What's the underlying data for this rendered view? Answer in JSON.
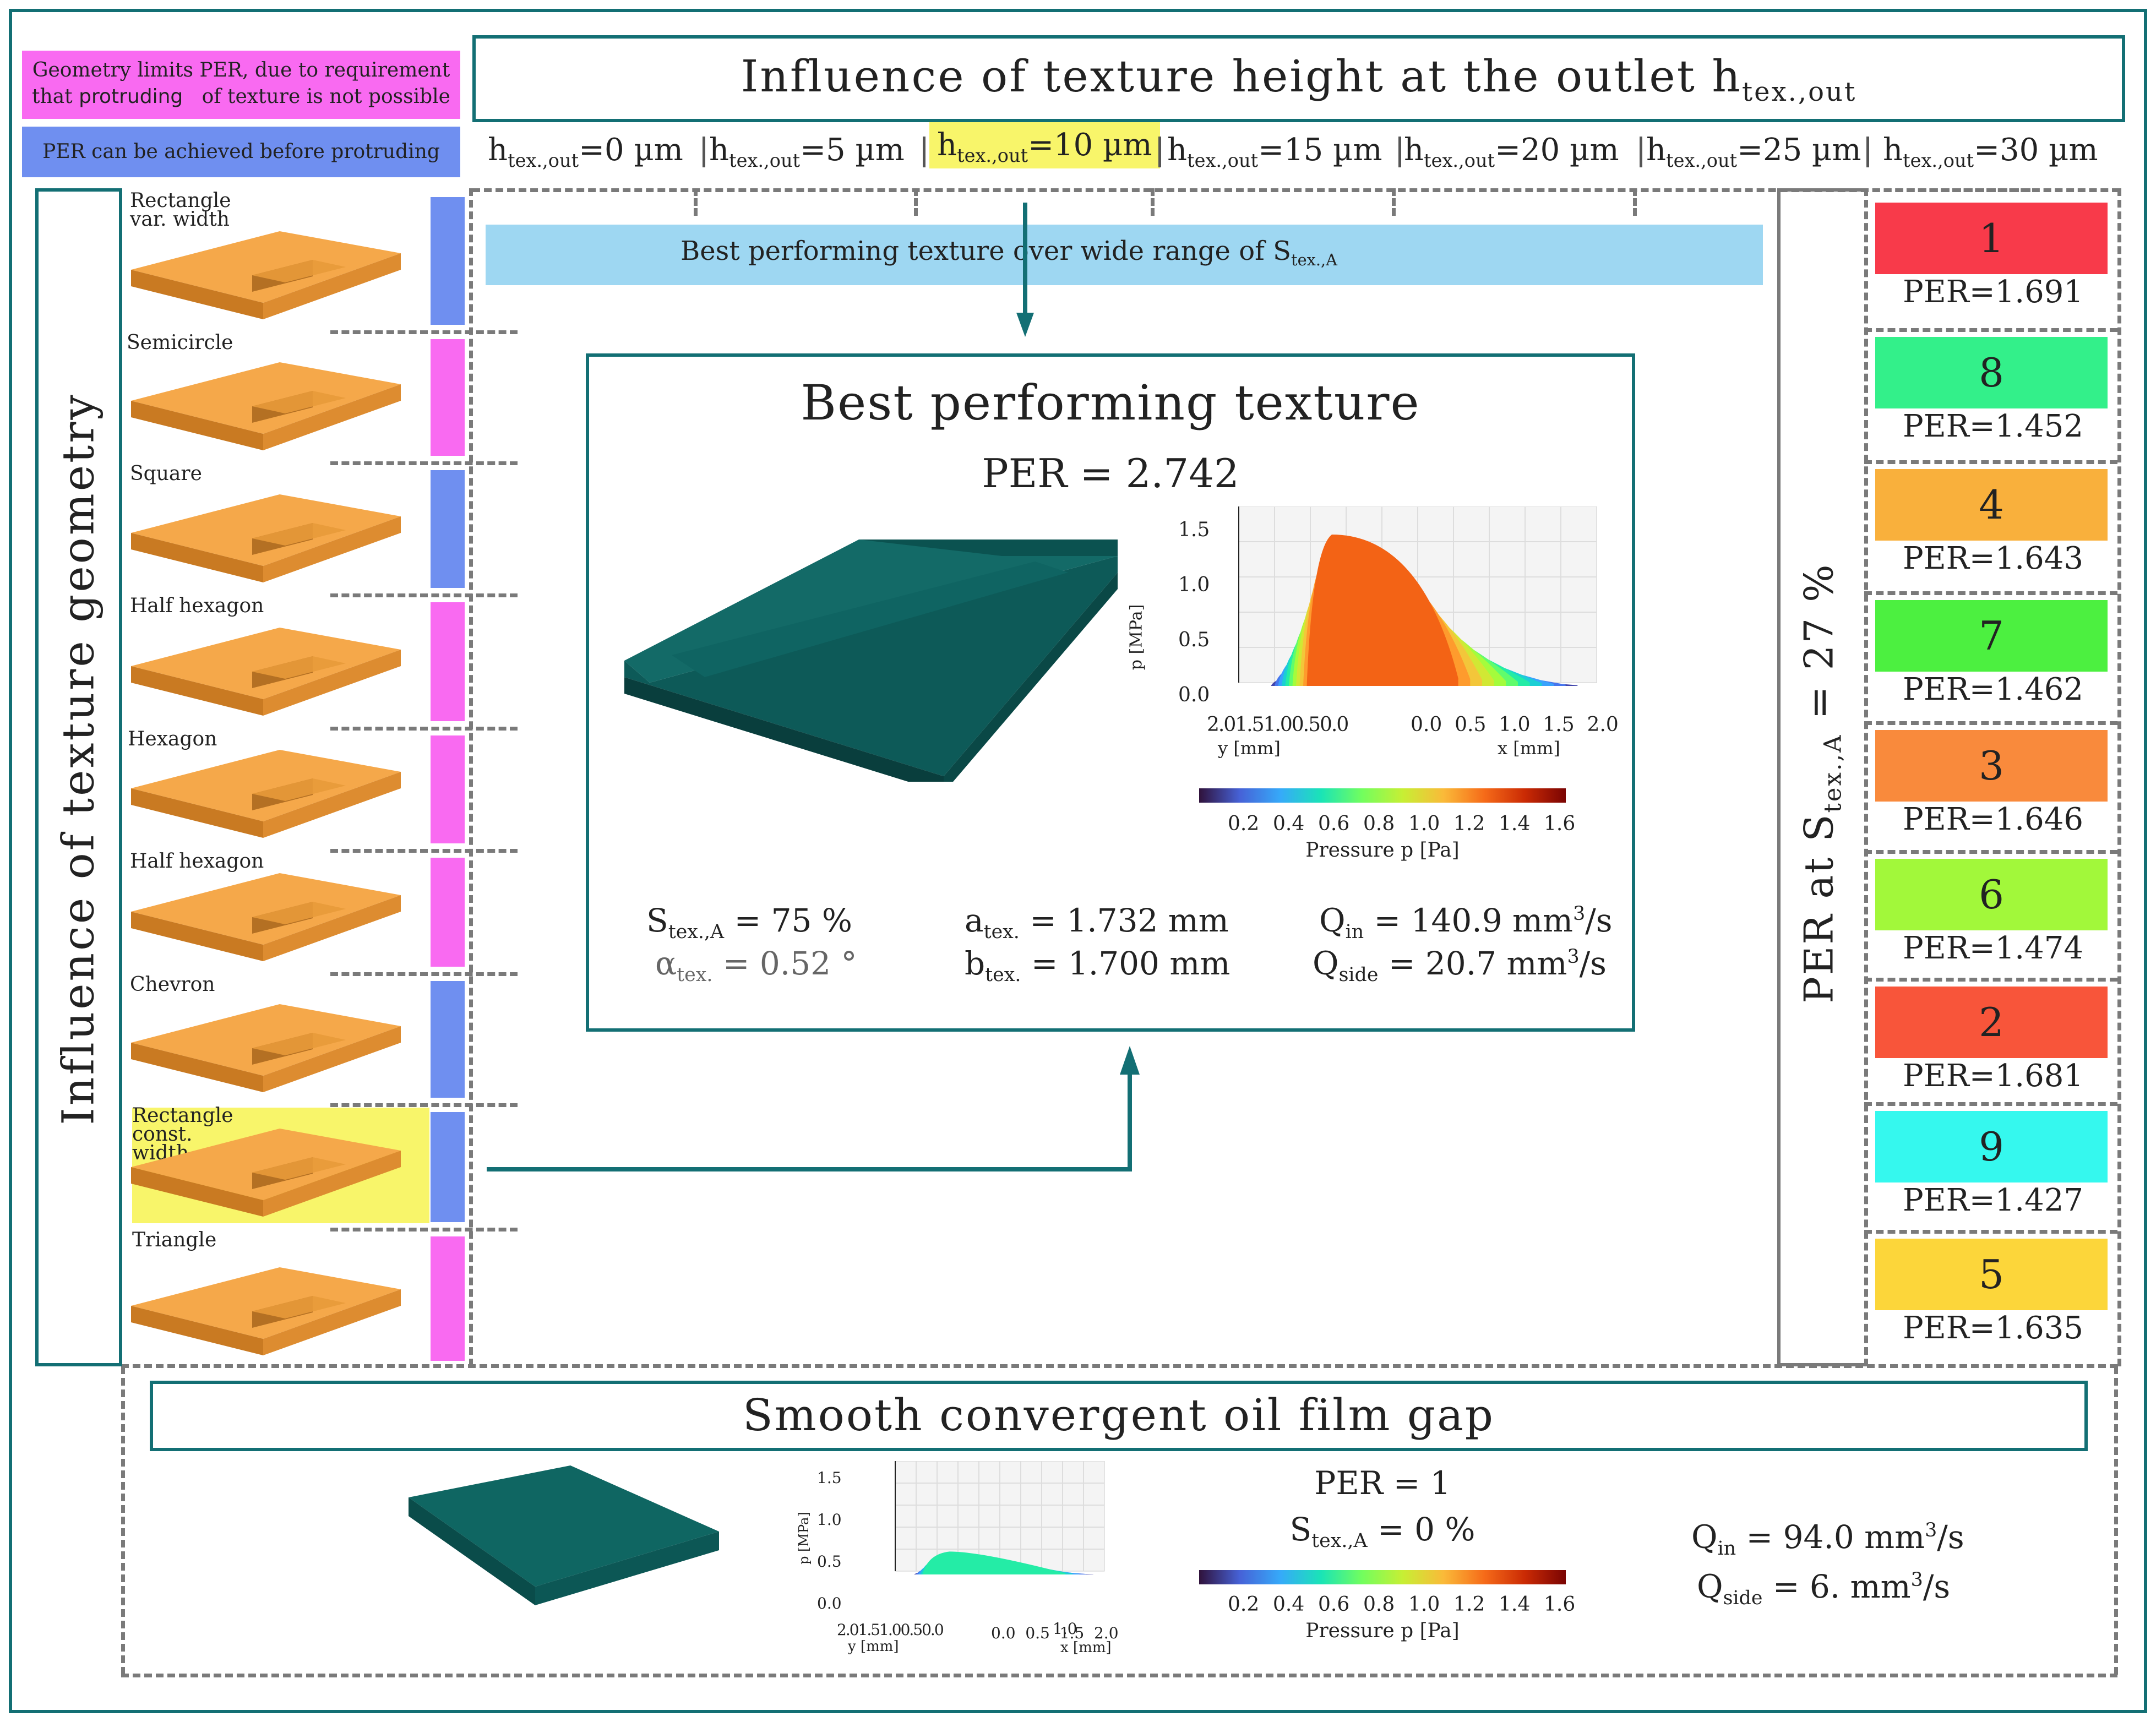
{
  "legend": {
    "pink_text_1": "Geometry limits PER, due to requirement",
    "pink_text_2a": "that",
    "pink_text_2b": "protruding",
    "pink_text_2c": "of texture is not possible",
    "blue_text": "PER can be achieved before protruding",
    "pink_color": "#f96af1",
    "blue_color": "#6f8ff0"
  },
  "header": {
    "title_main": "Influence of texture height at the outlet h",
    "title_sub": "tex.,out"
  },
  "heights": [
    {
      "sym": "h",
      "sub": "tex.,out",
      "val": "=0 µm"
    },
    {
      "sym": "h",
      "sub": "tex.,out",
      "val": "=5 µm"
    },
    {
      "sym": "h",
      "sub": "tex.,out",
      "val": "=10 µm"
    },
    {
      "sym": "h",
      "sub": "tex.,out",
      "val": "=15 µm"
    },
    {
      "sym": "h",
      "sub": "tex.,out",
      "val": "=20 µm"
    },
    {
      "sym": "h",
      "sub": "tex.,out",
      "val": "=25 µm"
    },
    {
      "sym": "h",
      "sub": "tex.,out",
      "val": "=30 µm"
    }
  ],
  "left_panel": {
    "title": "Influence of texture geometry"
  },
  "geometries": [
    {
      "label": "Rectangle\nvar. width",
      "status": "blue"
    },
    {
      "label": "Semicircle",
      "status": "pink"
    },
    {
      "label": "Square",
      "status": "blue"
    },
    {
      "label": "Half hexagon",
      "status": "pink"
    },
    {
      "label": "Hexagon",
      "status": "pink"
    },
    {
      "label": "Half hexagon",
      "status": "pink"
    },
    {
      "label": "Chevron",
      "status": "blue"
    },
    {
      "label": "Rectangle\nconst.\nwidth",
      "status": "blue"
    },
    {
      "label": "Triangle",
      "status": "pink"
    }
  ],
  "banner": {
    "text": "Best performing texture over wide range of S",
    "sub": "tex.,A"
  },
  "best": {
    "title": "Best performing texture",
    "per": "PER = 2.742",
    "s_tex_label": "S",
    "s_tex_sub": "tex.,A",
    "s_tex_val": " = 75 %",
    "alpha_label": "α",
    "alpha_sub": "tex.",
    "alpha_val": " = 0.52 °",
    "a_label": "a",
    "a_sub": "tex.",
    "a_val": " = 1.732 mm",
    "b_label": "b",
    "b_sub": "tex.",
    "b_val": " = 1.700 mm",
    "qin_label": "Q",
    "qin_sub": "in",
    "qin_val": " = 140.9 mm",
    "qin_unit": "/s",
    "qside_label": "Q",
    "qside_sub": "side",
    "qside_val": " = 20.7 mm",
    "qside_unit": "/s",
    "cube": "3"
  },
  "plot_best": {
    "zlabel": "p [MPa]",
    "zticks": [
      "1.5",
      "1.0",
      "0.5",
      "0.0"
    ],
    "yticks": "2.01.51.00.50.0",
    "yticks_right": "0.0  0.5  1.0  1.5  2.0",
    "ylabel": "y [mm]",
    "xlabel": "x [mm]"
  },
  "colorbar": {
    "ticks": [
      "0.2",
      "0.4",
      "0.6",
      "0.8",
      "1.0",
      "1.2",
      "1.4",
      "1.6"
    ],
    "label": "Pressure p [Pa]"
  },
  "right_panel": {
    "title": "PER at S",
    "sub": "tex.,A",
    "val": " = 27 %"
  },
  "ranks": [
    {
      "rank": "1",
      "per": "PER=1.691",
      "color": "#f83a4a"
    },
    {
      "rank": "8",
      "per": "PER=1.452",
      "color": "#33f08a"
    },
    {
      "rank": "4",
      "per": "PER=1.643",
      "color": "#f9b03c"
    },
    {
      "rank": "7",
      "per": "PER=1.462",
      "color": "#4cf040"
    },
    {
      "rank": "3",
      "per": "PER=1.646",
      "color": "#f98a3c"
    },
    {
      "rank": "6",
      "per": "PER=1.474",
      "color": "#a2f83a"
    },
    {
      "rank": "2",
      "per": "PER=1.681",
      "color": "#f8553a"
    },
    {
      "rank": "9",
      "per": "PER=1.427",
      "color": "#35f8ee"
    },
    {
      "rank": "5",
      "per": "PER=1.635",
      "color": "#fcd63a"
    }
  ],
  "smooth": {
    "title": "Smooth convergent oil film gap",
    "per": "PER = 1",
    "s_label": "S",
    "s_sub": "tex.,A",
    "s_val": " = 0 %",
    "qin_label": "Q",
    "qin_sub": "in",
    "qin_val": " = 94.0 mm",
    "qin_unit": "/s",
    "qside_label": "Q",
    "qside_sub": "side",
    "qside_val": " = 6. mm",
    "qside_unit": "/s",
    "cube": "3"
  },
  "plot_smooth": {
    "zlabel": "p [MPa]",
    "zticks": [
      "1.5",
      "1.0",
      "0.5",
      "0.0"
    ],
    "yticks": "2.01.51.00.50.0",
    "yticks_right": "0.0  0.5  1.5  2.0",
    "yticks_right_mid": "1.0",
    "ylabel": "y [mm]",
    "xlabel": "x [mm]"
  }
}
